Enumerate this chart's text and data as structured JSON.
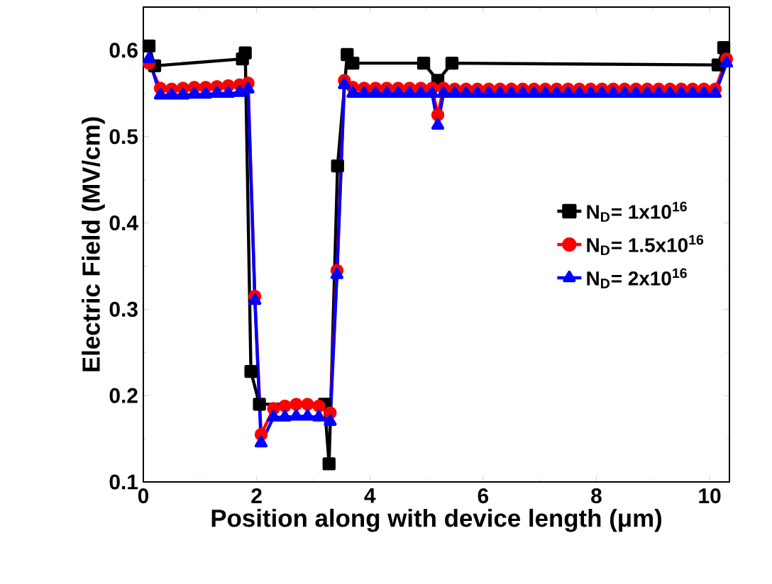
{
  "chart_data": {
    "type": "line",
    "xlabel": "Position along with device length (μm)",
    "ylabel": "Electric Field (MV/cm)",
    "xlim": [
      0,
      10.35
    ],
    "ylim": [
      0.1,
      0.65
    ],
    "xticks": [
      0,
      2,
      4,
      6,
      8,
      10
    ],
    "yticks": [
      0.1,
      0.2,
      0.3,
      0.4,
      0.5,
      0.6
    ],
    "grid": false,
    "legend": "right",
    "series": [
      {
        "name": "N$_{D}$= 1x10$^{16}$",
        "color": "#000000",
        "marker": "square",
        "x": [
          0.1,
          0.2,
          1.75,
          1.8,
          1.9,
          2.05,
          3.2,
          3.28,
          3.43,
          3.6,
          3.7,
          4.95,
          5.2,
          5.45,
          10.15,
          10.25
        ],
        "values": [
          0.605,
          0.582,
          0.59,
          0.597,
          0.228,
          0.19,
          0.19,
          0.121,
          0.466,
          0.595,
          0.585,
          0.585,
          0.565,
          0.585,
          0.583,
          0.603
        ]
      },
      {
        "name": "N$_{D}$= 1.5x10$^{16}$",
        "color": "#ff0000",
        "marker": "circle",
        "x": [
          0.1,
          0.3,
          0.5,
          0.7,
          0.9,
          1.1,
          1.3,
          1.5,
          1.7,
          1.85,
          1.97,
          2.08,
          2.3,
          2.5,
          2.7,
          2.9,
          3.1,
          3.3,
          3.42,
          3.55,
          3.7,
          3.9,
          4.1,
          4.3,
          4.5,
          4.7,
          4.9,
          5.1,
          5.2,
          5.3,
          5.5,
          5.7,
          5.9,
          6.1,
          6.3,
          6.5,
          6.7,
          6.9,
          7.1,
          7.3,
          7.5,
          7.7,
          7.9,
          8.1,
          8.3,
          8.5,
          8.7,
          8.9,
          9.1,
          9.3,
          9.5,
          9.7,
          9.9,
          10.1,
          10.3
        ],
        "values": [
          0.585,
          0.556,
          0.555,
          0.556,
          0.557,
          0.557,
          0.558,
          0.559,
          0.56,
          0.562,
          0.315,
          0.155,
          0.185,
          0.188,
          0.19,
          0.19,
          0.188,
          0.18,
          0.345,
          0.565,
          0.557,
          0.556,
          0.556,
          0.556,
          0.556,
          0.556,
          0.556,
          0.556,
          0.525,
          0.556,
          0.555,
          0.555,
          0.555,
          0.555,
          0.555,
          0.555,
          0.555,
          0.555,
          0.555,
          0.555,
          0.555,
          0.555,
          0.555,
          0.555,
          0.555,
          0.555,
          0.555,
          0.555,
          0.555,
          0.555,
          0.555,
          0.555,
          0.555,
          0.555,
          0.59
        ]
      },
      {
        "name": "N$_{D}$= 2x10$^{16}$",
        "color": "#0000ff",
        "marker": "triangle",
        "x": [
          0.1,
          0.3,
          0.5,
          0.7,
          0.9,
          1.1,
          1.3,
          1.5,
          1.7,
          1.85,
          1.97,
          2.08,
          2.3,
          2.5,
          2.7,
          2.9,
          3.1,
          3.3,
          3.42,
          3.55,
          3.7,
          3.9,
          4.1,
          4.3,
          4.5,
          4.7,
          4.9,
          5.1,
          5.2,
          5.3,
          5.5,
          5.7,
          5.9,
          6.1,
          6.3,
          6.5,
          6.7,
          6.9,
          7.1,
          7.3,
          7.5,
          7.7,
          7.9,
          8.1,
          8.3,
          8.5,
          8.7,
          8.9,
          9.1,
          9.3,
          9.5,
          9.7,
          9.9,
          10.1,
          10.3
        ],
        "values": [
          0.59,
          0.548,
          0.548,
          0.548,
          0.549,
          0.549,
          0.55,
          0.55,
          0.551,
          0.555,
          0.31,
          0.145,
          0.175,
          0.175,
          0.176,
          0.176,
          0.175,
          0.17,
          0.34,
          0.56,
          0.55,
          0.55,
          0.55,
          0.55,
          0.55,
          0.55,
          0.55,
          0.55,
          0.513,
          0.55,
          0.55,
          0.55,
          0.55,
          0.55,
          0.55,
          0.55,
          0.55,
          0.55,
          0.55,
          0.55,
          0.55,
          0.55,
          0.55,
          0.55,
          0.55,
          0.55,
          0.55,
          0.55,
          0.55,
          0.55,
          0.55,
          0.55,
          0.55,
          0.55,
          0.585
        ]
      }
    ]
  }
}
